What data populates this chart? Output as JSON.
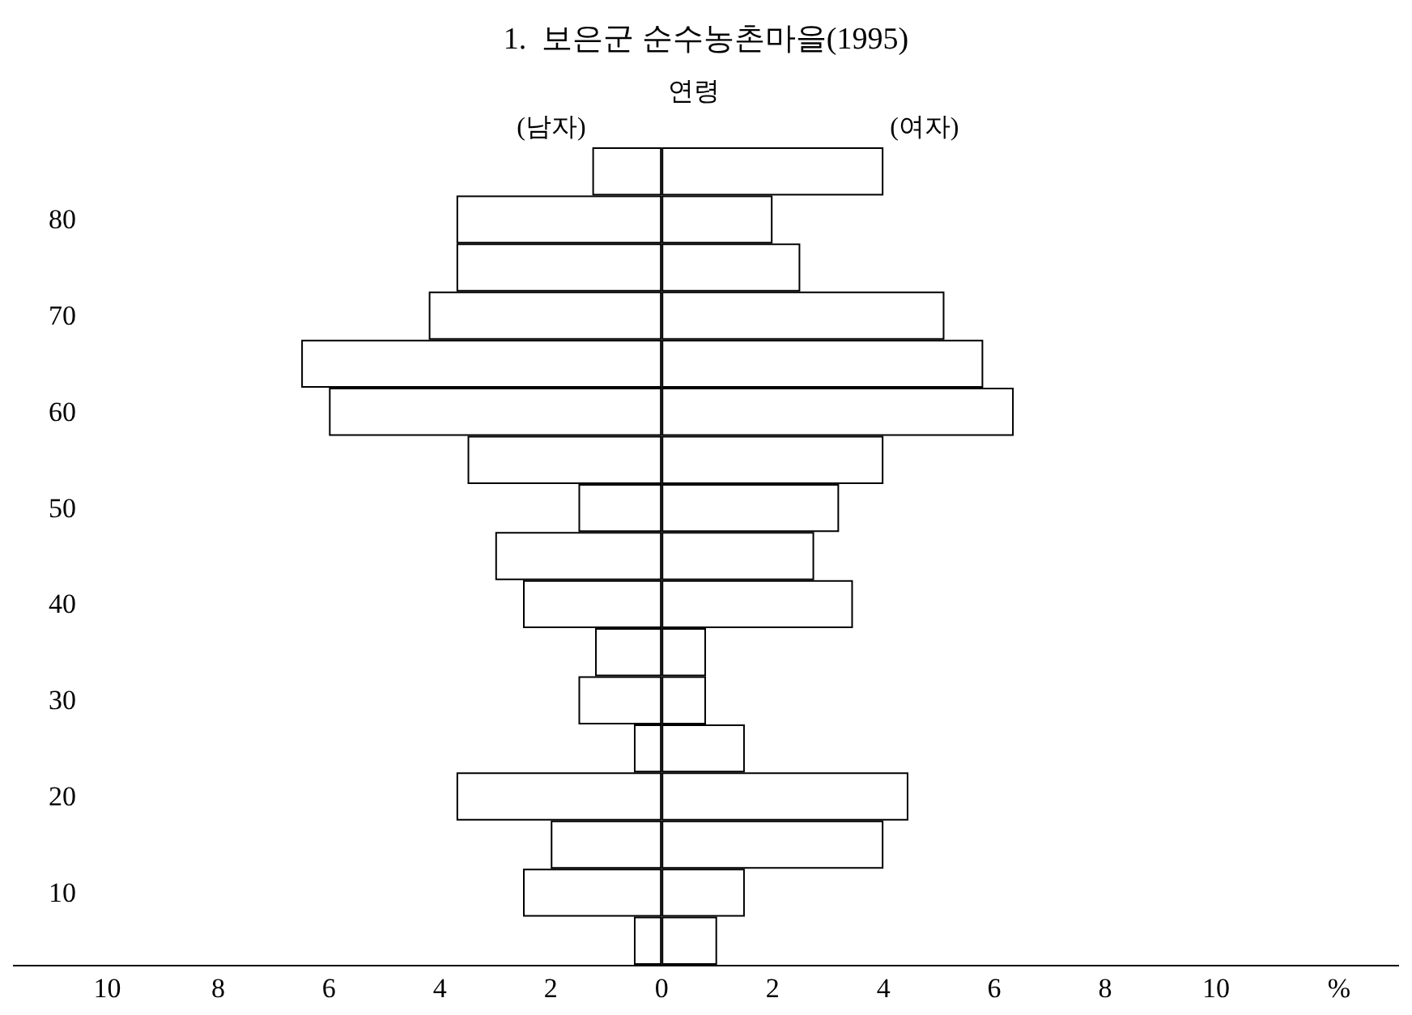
{
  "chart_data": {
    "type": "bar",
    "orientation": "horizontal",
    "stacked": true,
    "title": "1.  보은군 순수농촌마을(1995)",
    "ylabel": "연령",
    "xlabel": "%",
    "categories": [
      null,
      "80",
      null,
      "70",
      null,
      "60",
      null,
      "50",
      null,
      "40",
      null,
      "30",
      null,
      "20",
      null,
      "10",
      null
    ],
    "series": [
      {
        "name": "(남자)",
        "color": "#ffffff",
        "values": [
          -1.25,
          -3.7,
          -3.7,
          -4.2,
          -6.5,
          -6.0,
          -3.5,
          -1.5,
          -3.0,
          -2.5,
          -1.2,
          -1.5,
          -0.5,
          -3.7,
          -2.0,
          -2.5,
          -0.5
        ]
      },
      {
        "name": "(여자)",
        "color": "#ffffff",
        "values": [
          4.0,
          2.0,
          2.5,
          5.1,
          5.8,
          6.35,
          4.0,
          3.2,
          2.75,
          3.45,
          0.8,
          0.8,
          1.5,
          4.45,
          4.0,
          1.5,
          1.0
        ]
      }
    ],
    "xlim": [
      -11.7,
      13.3
    ],
    "xticks": [
      {
        "value": -10,
        "label": "10"
      },
      {
        "value": -8,
        "label": "8"
      },
      {
        "value": -6,
        "label": "6"
      },
      {
        "value": -4,
        "label": "4"
      },
      {
        "value": -2,
        "label": "2"
      },
      0,
      2,
      4,
      6,
      8,
      10
    ],
    "grid": false,
    "legend": false
  }
}
